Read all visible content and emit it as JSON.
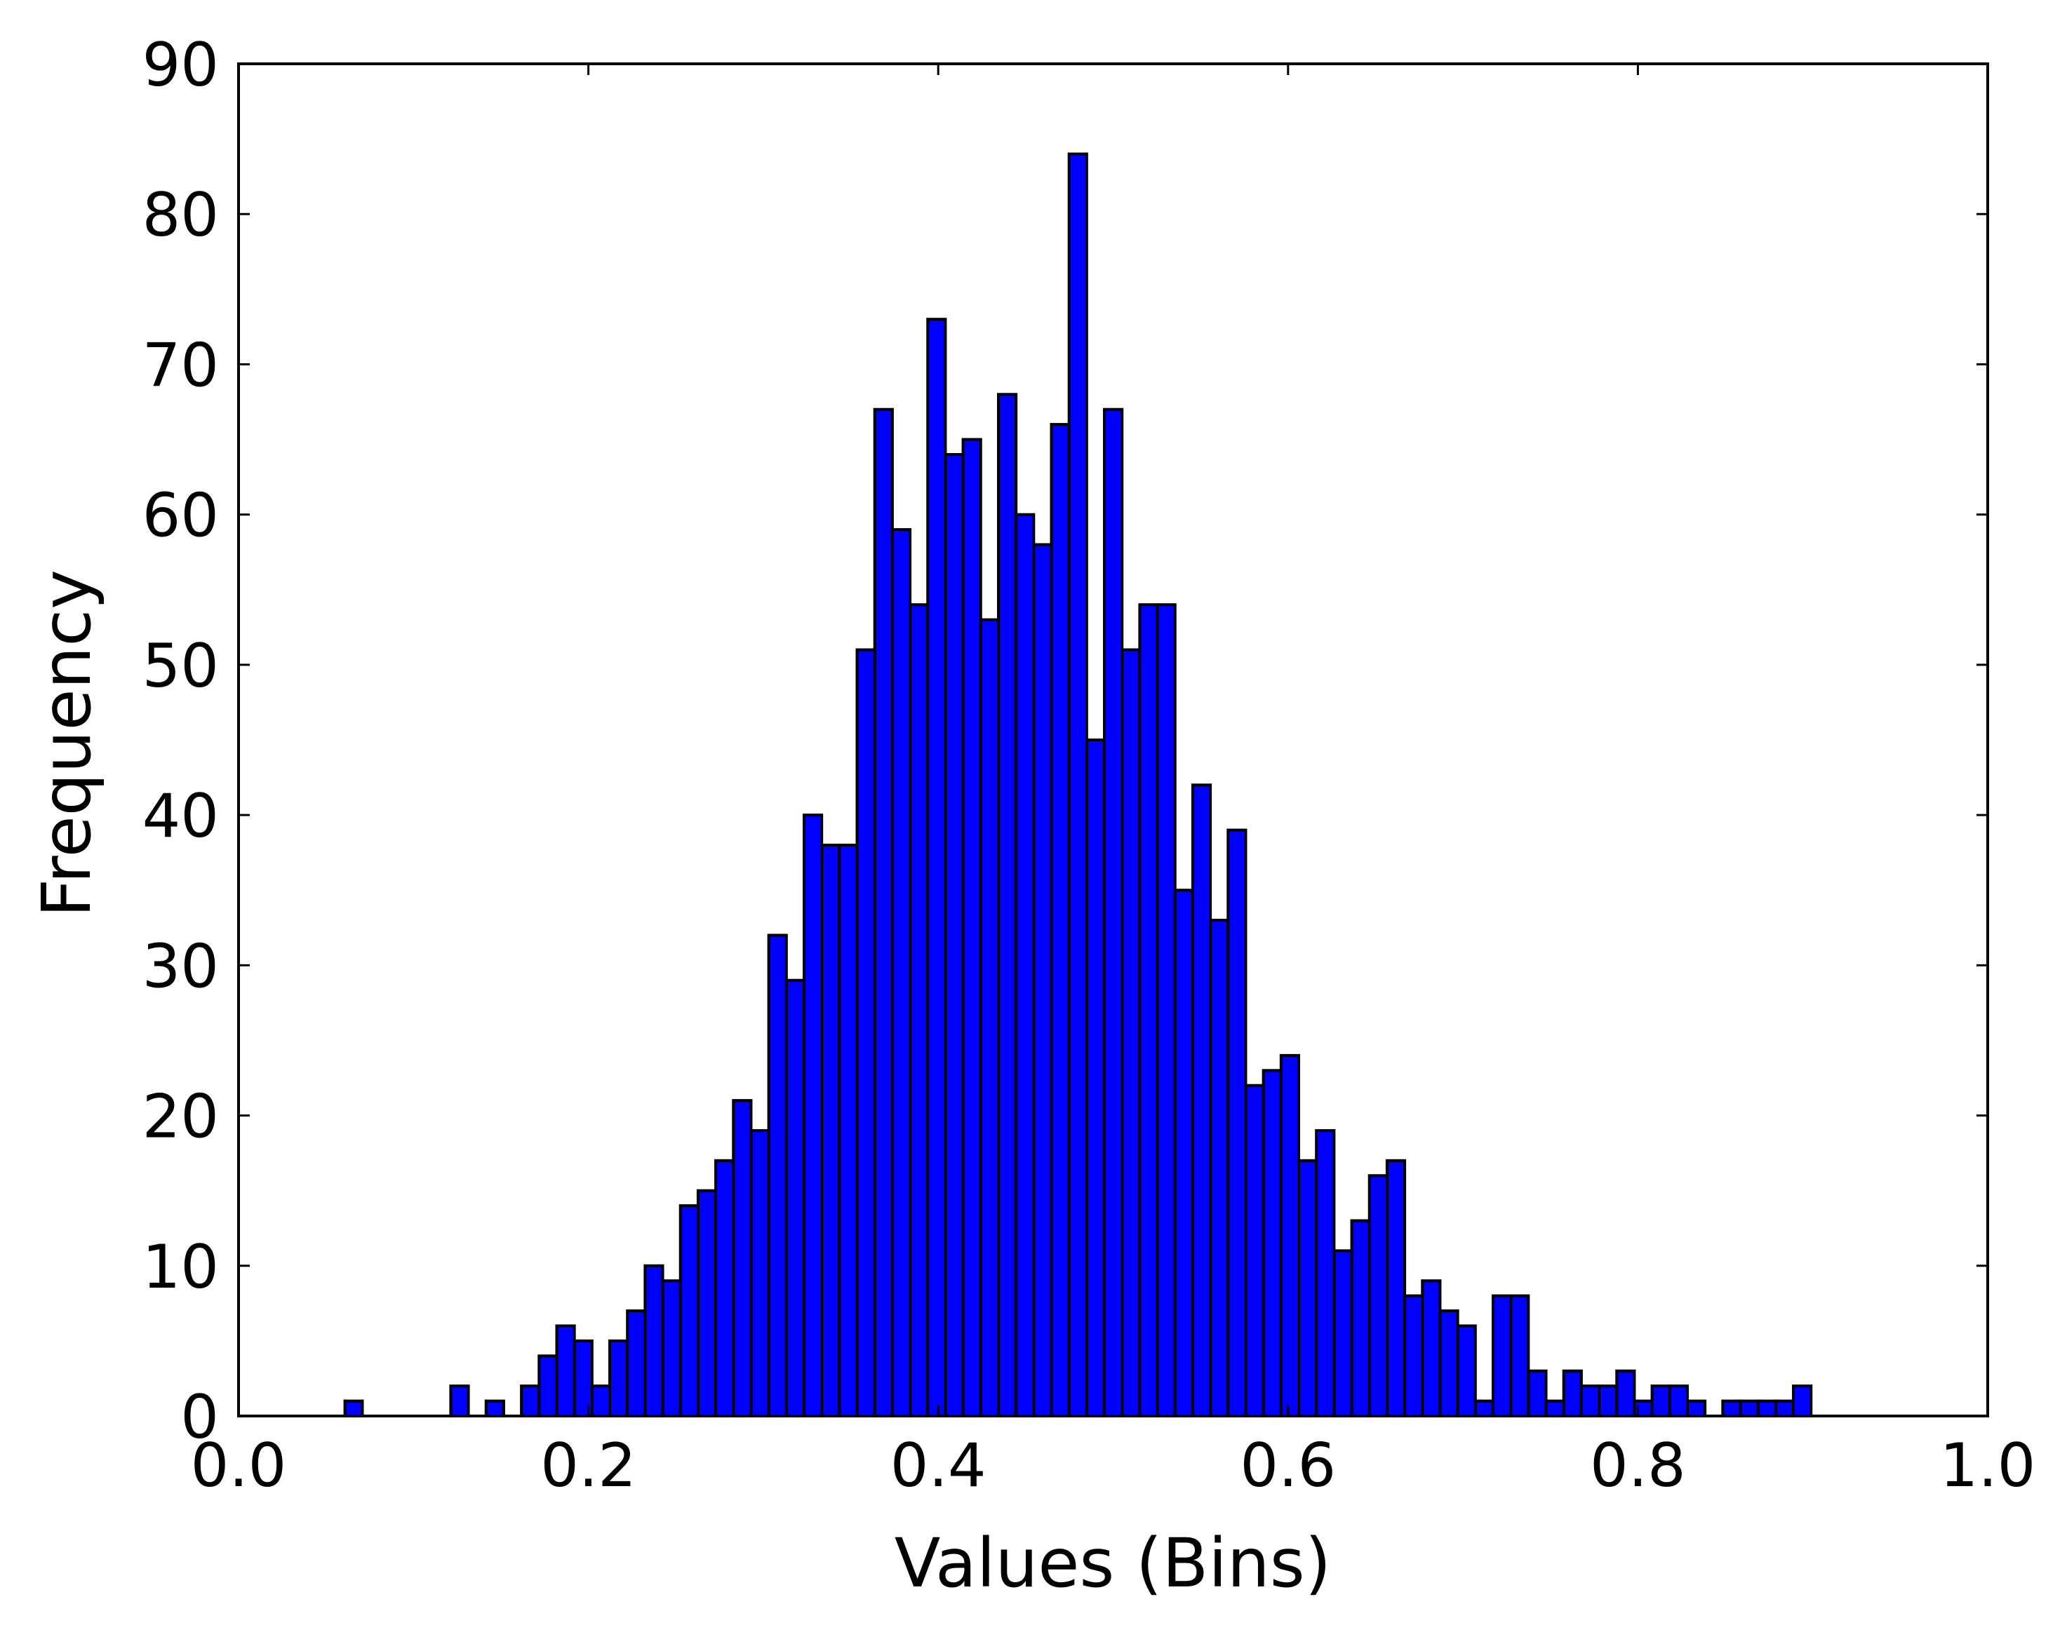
{
  "chart_data": {
    "type": "bar",
    "title": "",
    "xlabel": "Values (Bins)",
    "ylabel": "Frequency",
    "xlim": [
      0.0,
      1.0
    ],
    "ylim": [
      0,
      90
    ],
    "xticks": [
      "0.0",
      "0.2",
      "0.4",
      "0.6",
      "0.8",
      "1.0"
    ],
    "yticks": [
      "0",
      "10",
      "20",
      "30",
      "40",
      "50",
      "60",
      "70",
      "80",
      "90"
    ],
    "grid": false,
    "legend": "none",
    "bin_edges": [
      0.0608,
      0.0708,
      0.0809,
      0.091,
      0.1011,
      0.1112,
      0.1213,
      0.1314,
      0.1415,
      0.1516,
      0.1617,
      0.1718,
      0.1819,
      0.192,
      0.2021,
      0.2122,
      0.2223,
      0.2324,
      0.2425,
      0.2526,
      0.2627,
      0.2728,
      0.2829,
      0.293,
      0.3031,
      0.3132,
      0.3233,
      0.3334,
      0.3435,
      0.3536,
      0.3637,
      0.3738,
      0.3839,
      0.394,
      0.4041,
      0.4142,
      0.4243,
      0.4344,
      0.4445,
      0.4546,
      0.4647,
      0.4748,
      0.4849,
      0.495,
      0.5051,
      0.5152,
      0.5253,
      0.5354,
      0.5455,
      0.5556,
      0.5657,
      0.5758,
      0.5859,
      0.596,
      0.6061,
      0.6162,
      0.6263,
      0.6364,
      0.6465,
      0.6566,
      0.6667,
      0.6768,
      0.6869,
      0.697,
      0.7071,
      0.7172,
      0.7273,
      0.7374,
      0.7475,
      0.7576,
      0.7677,
      0.7778,
      0.7879,
      0.798,
      0.8081,
      0.8182,
      0.8283,
      0.8384,
      0.8485,
      0.8586,
      0.8687,
      0.8788,
      0.8889,
      0.899
    ],
    "values": [
      1,
      0,
      0,
      0,
      0,
      0,
      2,
      0,
      1,
      0,
      2,
      4,
      6,
      5,
      2,
      5,
      7,
      10,
      9,
      14,
      15,
      17,
      21,
      19,
      32,
      29,
      40,
      38,
      38,
      51,
      67,
      59,
      54,
      73,
      64,
      65,
      53,
      68,
      60,
      58,
      66,
      84,
      45,
      67,
      51,
      54,
      54,
      35,
      42,
      33,
      39,
      22,
      23,
      24,
      17,
      19,
      11,
      13,
      16,
      17,
      8,
      9,
      7,
      6,
      1,
      8,
      8,
      3,
      1,
      3,
      2,
      2,
      3,
      1,
      2,
      2,
      1,
      0,
      1,
      1,
      1,
      1,
      2
    ],
    "colors": {
      "bar_fill": "#0000ff",
      "bar_edge": "#000000",
      "axes": "#000000",
      "background": "#ffffff"
    }
  }
}
